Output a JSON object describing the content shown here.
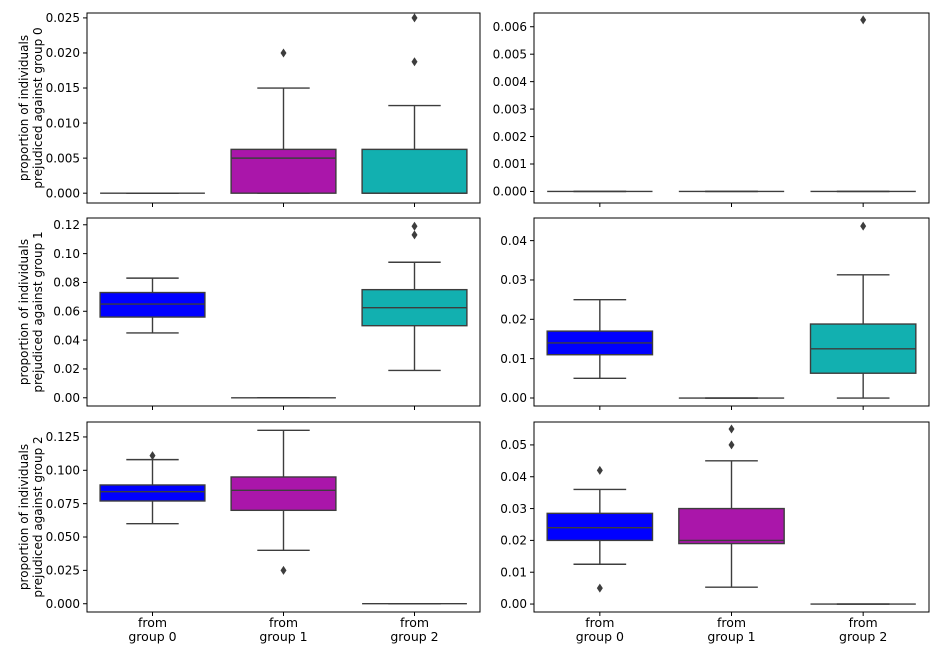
{
  "chart_data": [
    {
      "type": "box",
      "row": 0,
      "col": 0,
      "ylabel": [
        "proportion of individuals",
        "prejudiced against group 0"
      ],
      "ylim": [
        -0.0014,
        0.0257
      ],
      "yticks": [
        "0.000",
        "0.005",
        "0.010",
        "0.015",
        "0.020",
        "0.025"
      ],
      "categories": [
        "from group 0",
        "from group 1",
        "from group 2"
      ],
      "show_xticklabels": false,
      "boxes": [
        {
          "color": "#0000ff",
          "q1": 0,
          "median": 0,
          "q3": 0,
          "whisker_low": 0,
          "whisker_high": 0,
          "outliers": []
        },
        {
          "color": "#aa16aa",
          "q1": 0,
          "median": 0.005,
          "q3": 0.00625,
          "whisker_low": 0,
          "whisker_high": 0.015,
          "outliers": [
            0.02
          ]
        },
        {
          "color": "#12b0b0",
          "q1": 0,
          "median": 0,
          "q3": 0.00625,
          "whisker_low": 0,
          "whisker_high": 0.0125,
          "outliers": [
            0.01875,
            0.025
          ]
        }
      ]
    },
    {
      "type": "box",
      "row": 0,
      "col": 1,
      "ylabel": null,
      "ylim": [
        -0.00042,
        0.0065
      ],
      "yticks": [
        "0.000",
        "0.001",
        "0.002",
        "0.003",
        "0.004",
        "0.005",
        "0.006"
      ],
      "categories": [
        "from group 0",
        "from group 1",
        "from group 2"
      ],
      "show_xticklabels": false,
      "boxes": [
        {
          "color": "#0000ff",
          "q1": 0,
          "median": 0,
          "q3": 0,
          "whisker_low": 0,
          "whisker_high": 0,
          "outliers": []
        },
        {
          "color": "#aa16aa",
          "q1": 0,
          "median": 0,
          "q3": 0,
          "whisker_low": 0,
          "whisker_high": 0,
          "outliers": []
        },
        {
          "color": "#12b0b0",
          "q1": 0,
          "median": 0,
          "q3": 0,
          "whisker_low": 0,
          "whisker_high": 0,
          "outliers": [
            0.00625
          ]
        }
      ]
    },
    {
      "type": "box",
      "row": 1,
      "col": 0,
      "ylabel": [
        "proportion of individuals",
        "prejudiced against group 1"
      ],
      "ylim": [
        -0.0057,
        0.1247
      ],
      "yticks": [
        "0.00",
        "0.02",
        "0.04",
        "0.06",
        "0.08",
        "0.10",
        "0.12"
      ],
      "categories": [
        "from group 0",
        "from group 1",
        "from group 2"
      ],
      "show_xticklabels": false,
      "boxes": [
        {
          "color": "#0000ff",
          "q1": 0.056,
          "median": 0.065,
          "q3": 0.073,
          "whisker_low": 0.045,
          "whisker_high": 0.083,
          "outliers": []
        },
        {
          "color": "#aa16aa",
          "q1": 0,
          "median": 0,
          "q3": 0,
          "whisker_low": 0,
          "whisker_high": 0,
          "outliers": []
        },
        {
          "color": "#12b0b0",
          "q1": 0.05,
          "median": 0.0625,
          "q3": 0.075,
          "whisker_low": 0.019,
          "whisker_high": 0.094,
          "outliers": [
            0.113,
            0.119
          ]
        }
      ]
    },
    {
      "type": "box",
      "row": 1,
      "col": 1,
      "ylabel": null,
      "ylim": [
        -0.00203,
        0.04575
      ],
      "yticks": [
        "0.00",
        "0.01",
        "0.02",
        "0.03",
        "0.04"
      ],
      "categories": [
        "from group 0",
        "from group 1",
        "from group 2"
      ],
      "show_xticklabels": false,
      "boxes": [
        {
          "color": "#0000ff",
          "q1": 0.011,
          "median": 0.014,
          "q3": 0.017,
          "whisker_low": 0.005,
          "whisker_high": 0.025,
          "outliers": []
        },
        {
          "color": "#aa16aa",
          "q1": 0,
          "median": 0,
          "q3": 0,
          "whisker_low": 0,
          "whisker_high": 0,
          "outliers": []
        },
        {
          "color": "#12b0b0",
          "q1": 0.0063,
          "median": 0.0125,
          "q3": 0.0188,
          "whisker_low": 0,
          "whisker_high": 0.0313,
          "outliers": [
            0.0437
          ]
        }
      ]
    },
    {
      "type": "box",
      "row": 2,
      "col": 0,
      "ylabel": [
        "proportion of individuals",
        "prejudiced against group 2"
      ],
      "ylim": [
        -0.0062,
        0.1362
      ],
      "yticks": [
        "0.000",
        "0.025",
        "0.050",
        "0.075",
        "0.100",
        "0.125"
      ],
      "categories": [
        "from group 0",
        "from group 1",
        "from group 2"
      ],
      "show_xticklabels": true,
      "boxes": [
        {
          "color": "#0000ff",
          "q1": 0.077,
          "median": 0.084,
          "q3": 0.089,
          "whisker_low": 0.06,
          "whisker_high": 0.108,
          "outliers": [
            0.111
          ]
        },
        {
          "color": "#aa16aa",
          "q1": 0.07,
          "median": 0.085,
          "q3": 0.095,
          "whisker_low": 0.04,
          "whisker_high": 0.13,
          "outliers": [
            0.025
          ]
        },
        {
          "color": "#12b0b0",
          "q1": 0,
          "median": 0,
          "q3": 0,
          "whisker_low": 0,
          "whisker_high": 0,
          "outliers": []
        }
      ]
    },
    {
      "type": "box",
      "row": 2,
      "col": 1,
      "ylabel": null,
      "ylim": [
        -0.0025,
        0.0572
      ],
      "yticks": [
        "0.00",
        "0.01",
        "0.02",
        "0.03",
        "0.04",
        "0.05"
      ],
      "categories": [
        "from group 0",
        "from group 1",
        "from group 2"
      ],
      "show_xticklabels": true,
      "boxes": [
        {
          "color": "#0000ff",
          "q1": 0.02,
          "median": 0.024,
          "q3": 0.0285,
          "whisker_low": 0.0125,
          "whisker_high": 0.036,
          "outliers": [
            0.042,
            0.005
          ]
        },
        {
          "color": "#aa16aa",
          "q1": 0.019,
          "median": 0.02,
          "q3": 0.03,
          "whisker_low": 0.0053,
          "whisker_high": 0.045,
          "outliers": [
            0.05,
            0.055
          ]
        },
        {
          "color": "#12b0b0",
          "q1": 0,
          "median": 0,
          "q3": 0,
          "whisker_low": 0,
          "whisker_high": 0,
          "outliers": []
        }
      ]
    }
  ]
}
